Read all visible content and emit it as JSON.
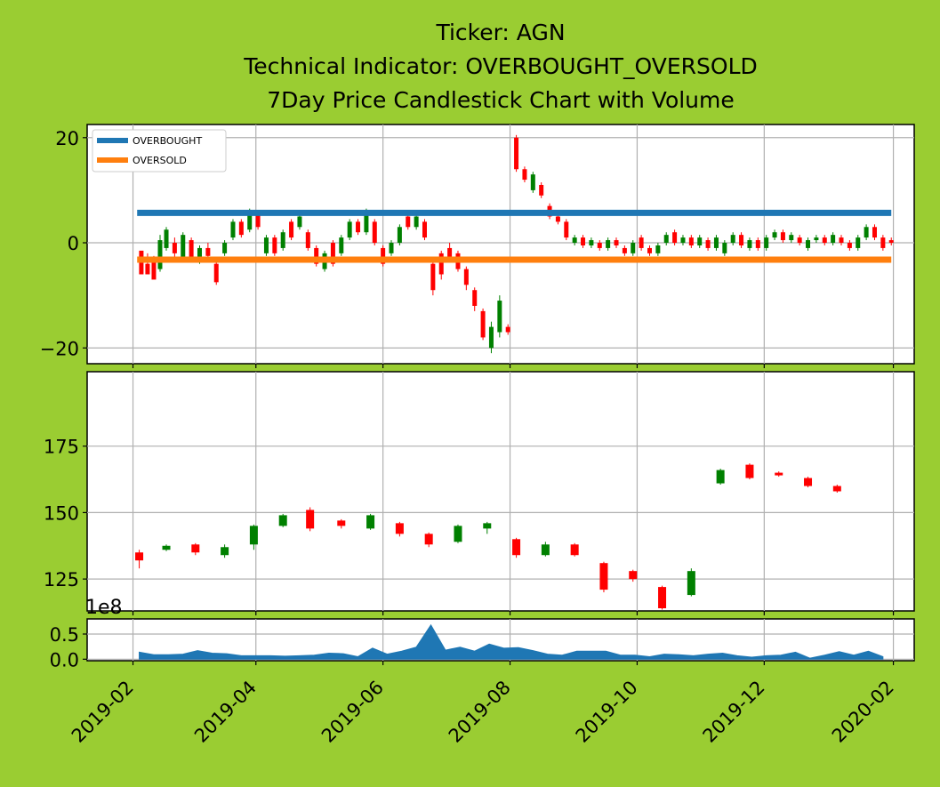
{
  "colors": {
    "background": "#9acd32",
    "panel": "#ffffff",
    "grid": "#b0b0b0",
    "up": "#008000",
    "down": "#ff0000",
    "overbought": "#1f77b4",
    "oversold": "#ff7f0e",
    "volume": "#1f77b4"
  },
  "title": {
    "line1": "Ticker: AGN",
    "line2": "Technical Indicator: OVERBOUGHT_OVERSOLD",
    "line3": "7Day Price Candlestick Chart with Volume"
  },
  "volume_multiplier_label": "1e8",
  "chart_data": [
    {
      "type": "line",
      "name": "indicator",
      "ylim": [
        -23,
        22.5
      ],
      "yticks": [
        20,
        0,
        -20
      ],
      "ytick_labels": [
        "20",
        "0",
        "−20"
      ],
      "legend": {
        "placement": "top-left",
        "entries": [
          "OVERBOUGHT",
          "OVERSOLD"
        ]
      },
      "series": [
        {
          "name": "OVERBOUGHT",
          "x": [
            "2019-02-03",
            "2020-01-31"
          ],
          "values": [
            5.7,
            5.7
          ]
        },
        {
          "name": "OVERSOLD",
          "x": [
            "2019-02-03",
            "2020-01-31"
          ],
          "values": [
            -3.2,
            -3.2
          ]
        }
      ],
      "candles": [
        [
          "2019-02-05",
          -1.5,
          -6,
          -2,
          -5
        ],
        [
          "2019-02-08",
          -4,
          -6,
          -2,
          -5
        ],
        [
          "2019-02-11",
          -3,
          -7,
          -2.5,
          -4.5
        ],
        [
          "2019-02-14",
          -5,
          0.5,
          -5.5,
          1.5
        ],
        [
          "2019-02-17",
          -1,
          2.5,
          -1.5,
          3
        ],
        [
          "2019-02-21",
          0,
          -2,
          1,
          -3
        ],
        [
          "2019-02-25",
          -3,
          1.5,
          -3.5,
          2
        ],
        [
          "2019-03-01",
          0.5,
          -3,
          1,
          -3.5
        ],
        [
          "2019-03-05",
          -3,
          -1,
          -4,
          -0.5
        ],
        [
          "2019-03-09",
          -1,
          -2.5,
          0,
          -3
        ],
        [
          "2019-03-13",
          -4,
          -7.5,
          -3,
          -8
        ],
        [
          "2019-03-17",
          -2,
          0,
          -2.5,
          0.5
        ],
        [
          "2019-03-21",
          1,
          4,
          0.5,
          4.5
        ],
        [
          "2019-03-25",
          4,
          1.5,
          4.5,
          1
        ],
        [
          "2019-03-29",
          2.5,
          6,
          2,
          6.5
        ],
        [
          "2019-04-02",
          5.5,
          3,
          6,
          2.5
        ],
        [
          "2019-04-06",
          -2,
          1,
          -2.5,
          1.5
        ],
        [
          "2019-04-10",
          1,
          -2,
          1.5,
          -2.5
        ],
        [
          "2019-04-14",
          -1,
          2,
          -1.5,
          2.5
        ],
        [
          "2019-04-18",
          4,
          1,
          4.5,
          0.5
        ],
        [
          "2019-04-22",
          3,
          5,
          2.5,
          5.5
        ],
        [
          "2019-04-26",
          2,
          -1,
          2.5,
          -1.5
        ],
        [
          "2019-04-30",
          -1,
          -4,
          -0.5,
          -4.5
        ],
        [
          "2019-05-04",
          -5,
          -2,
          -5.5,
          -1.5
        ],
        [
          "2019-05-08",
          0,
          -4,
          0.5,
          -4.5
        ],
        [
          "2019-05-12",
          -2,
          1,
          -2.5,
          1.5
        ],
        [
          "2019-05-16",
          1,
          4,
          0.5,
          4.5
        ],
        [
          "2019-05-20",
          4,
          2,
          4.5,
          1.5
        ],
        [
          "2019-05-24",
          2,
          6,
          1.5,
          6.5
        ],
        [
          "2019-05-28",
          4,
          0,
          4.5,
          -0.5
        ],
        [
          "2019-06-01",
          -1,
          -4,
          -0.5,
          -4.5
        ],
        [
          "2019-06-05",
          -2,
          0,
          -2.5,
          0.5
        ],
        [
          "2019-06-09",
          0,
          3,
          -0.5,
          3.5
        ],
        [
          "2019-06-13",
          5,
          3,
          5.5,
          2.5
        ],
        [
          "2019-06-17",
          3,
          5,
          2.5,
          5.5
        ],
        [
          "2019-06-21",
          4,
          1,
          4.5,
          0.5
        ],
        [
          "2019-06-25",
          -4,
          -9,
          -3.5,
          -10
        ],
        [
          "2019-06-29",
          -2,
          -6,
          -1.5,
          -7
        ],
        [
          "2019-07-03",
          -1,
          -3,
          0,
          -3.5
        ],
        [
          "2019-07-07",
          -2,
          -5,
          -1.5,
          -5.5
        ],
        [
          "2019-07-11",
          -5,
          -8,
          -4.5,
          -9
        ],
        [
          "2019-07-15",
          -9,
          -12,
          -8.5,
          -13
        ],
        [
          "2019-07-19",
          -13,
          -18,
          -12.5,
          -18.5
        ],
        [
          "2019-07-23",
          -20,
          -16,
          -21,
          -15
        ],
        [
          "2019-07-27",
          -17,
          -11,
          -18,
          -10
        ],
        [
          "2019-07-31",
          -16,
          -17,
          -15.5,
          -17.5
        ],
        [
          "2019-08-04",
          20,
          14,
          20.5,
          13.5
        ],
        [
          "2019-08-08",
          14,
          12,
          14.5,
          11.5
        ],
        [
          "2019-08-12",
          10,
          13,
          9.5,
          13.5
        ],
        [
          "2019-08-16",
          11,
          9,
          11.5,
          8.5
        ],
        [
          "2019-08-20",
          7,
          5,
          7.5,
          4.5
        ],
        [
          "2019-08-24",
          5,
          4,
          5.5,
          3.5
        ],
        [
          "2019-08-28",
          4,
          1,
          4.5,
          0.5
        ],
        [
          "2019-09-01",
          0,
          1,
          -0.5,
          1.5
        ],
        [
          "2019-09-05",
          1,
          -0.5,
          1.5,
          -1
        ],
        [
          "2019-09-09",
          -0.5,
          0.5,
          -1,
          1
        ],
        [
          "2019-09-13",
          0,
          -1,
          0.5,
          -1.5
        ],
        [
          "2019-09-17",
          -1,
          0.5,
          -1.5,
          1
        ],
        [
          "2019-09-21",
          0.5,
          -0.5,
          1,
          -1
        ],
        [
          "2019-09-25",
          -1,
          -2,
          -0.5,
          -2.5
        ],
        [
          "2019-09-29",
          -2,
          0,
          -2.5,
          0.5
        ],
        [
          "2019-10-03",
          1,
          -1,
          1.5,
          -1.5
        ],
        [
          "2019-10-07",
          -1,
          -2,
          -0.5,
          -2.5
        ],
        [
          "2019-10-11",
          -2,
          -0.5,
          -2.5,
          0
        ],
        [
          "2019-10-15",
          0,
          1.5,
          -0.5,
          2
        ],
        [
          "2019-10-19",
          2,
          0,
          2.5,
          -0.5
        ],
        [
          "2019-10-23",
          0,
          1,
          -0.5,
          1.5
        ],
        [
          "2019-10-27",
          1,
          -0.5,
          1.5,
          -1
        ],
        [
          "2019-10-31",
          -0.5,
          1,
          -1,
          1.5
        ],
        [
          "2019-11-04",
          0.5,
          -1,
          1,
          -1.5
        ],
        [
          "2019-11-08",
          -1,
          1,
          -1.5,
          1.5
        ],
        [
          "2019-11-12",
          -2,
          0,
          -2.5,
          0.5
        ],
        [
          "2019-11-16",
          0,
          1.5,
          -0.5,
          2
        ],
        [
          "2019-11-20",
          1.5,
          -0.5,
          2,
          -1
        ],
        [
          "2019-11-24",
          -1,
          0.5,
          -1.5,
          1
        ],
        [
          "2019-11-28",
          0.5,
          -1,
          1,
          -1.5
        ],
        [
          "2019-12-02",
          -1,
          1,
          -1.5,
          1.5
        ],
        [
          "2019-12-06",
          1,
          2,
          0.5,
          2.5
        ],
        [
          "2019-12-10",
          2,
          0.5,
          2.5,
          0
        ],
        [
          "2019-12-14",
          0.5,
          1.5,
          0,
          2
        ],
        [
          "2019-12-18",
          1,
          0,
          1.5,
          -0.5
        ],
        [
          "2019-12-22",
          -1,
          0.5,
          -1.5,
          1
        ],
        [
          "2019-12-26",
          0.5,
          1,
          0,
          1.5
        ],
        [
          "2019-12-30",
          1,
          0,
          1.5,
          -0.5
        ],
        [
          "2020-01-03",
          0,
          1.5,
          -0.5,
          2
        ],
        [
          "2020-01-07",
          1,
          0,
          1.5,
          -0.5
        ],
        [
          "2020-01-11",
          0,
          -1,
          0.5,
          -1.5
        ],
        [
          "2020-01-15",
          -1,
          1,
          -1.5,
          1.5
        ],
        [
          "2020-01-19",
          1,
          3,
          0.5,
          3.5
        ],
        [
          "2020-01-23",
          3,
          1,
          3.5,
          0.5
        ],
        [
          "2020-01-27",
          1,
          -1,
          1.5,
          -1.5
        ],
        [
          "2020-01-31",
          0.5,
          0,
          1,
          -0.5
        ]
      ],
      "candle_format": [
        "date",
        "open",
        "close",
        "high",
        "low"
      ]
    },
    {
      "type": "candlestick",
      "name": "price",
      "ylim": [
        113,
        203
      ],
      "yticks": [
        175,
        150,
        125
      ],
      "ytick_labels": [
        "175",
        "150",
        "125"
      ],
      "candles": [
        [
          "2019-02-04",
          135,
          132,
          136,
          129
        ],
        [
          "2019-02-17",
          136,
          137.5,
          135.5,
          138
        ],
        [
          "2019-03-03",
          138,
          135,
          138.5,
          134
        ],
        [
          "2019-03-17",
          134,
          137,
          133,
          138
        ],
        [
          "2019-03-31",
          138,
          145,
          136,
          145.5
        ],
        [
          "2019-04-14",
          145,
          149,
          144.5,
          149.5
        ],
        [
          "2019-04-27",
          151,
          144,
          152,
          143
        ],
        [
          "2019-05-12",
          147,
          145,
          147.5,
          144
        ],
        [
          "2019-05-26",
          144,
          149,
          143.5,
          149.5
        ],
        [
          "2019-06-09",
          146,
          142,
          146.5,
          141
        ],
        [
          "2019-06-23",
          142,
          138,
          142.5,
          137
        ],
        [
          "2019-07-07",
          139,
          145,
          138.5,
          145.5
        ],
        [
          "2019-07-21",
          144,
          146,
          142,
          146.5
        ],
        [
          "2019-08-04",
          140,
          134,
          140.5,
          133
        ],
        [
          "2019-08-18",
          134,
          138,
          133.5,
          139
        ],
        [
          "2019-09-01",
          138,
          134,
          138.5,
          133.5
        ],
        [
          "2019-09-15",
          131,
          121,
          131.5,
          120
        ],
        [
          "2019-09-29",
          128,
          125,
          128.5,
          124
        ],
        [
          "2019-10-13",
          122,
          114,
          122.5,
          113.5
        ],
        [
          "2019-10-27",
          119,
          128,
          118.5,
          129
        ],
        [
          "2019-11-10",
          161,
          166,
          160.5,
          166.5
        ],
        [
          "2019-11-24",
          168,
          163,
          168.5,
          162.5
        ],
        [
          "2019-12-08",
          165,
          164,
          165.5,
          163.5
        ],
        [
          "2019-12-22",
          163,
          160,
          163.5,
          159.5
        ],
        [
          "2020-01-05",
          160,
          158,
          160.5,
          157.5
        ]
      ],
      "candle_format": [
        "date",
        "open",
        "close",
        "high",
        "low"
      ]
    },
    {
      "type": "area",
      "name": "volume",
      "ylim": [
        -0.03,
        0.8
      ],
      "yticks": [
        0.5,
        0.0
      ],
      "ytick_labels": [
        "0.5",
        "0.0"
      ],
      "x": [
        "2019-02-04",
        "2019-02-11",
        "2019-02-18",
        "2019-02-25",
        "2019-03-04",
        "2019-03-11",
        "2019-03-18",
        "2019-03-25",
        "2019-04-01",
        "2019-04-08",
        "2019-04-15",
        "2019-04-22",
        "2019-04-29",
        "2019-05-06",
        "2019-05-13",
        "2019-05-20",
        "2019-05-27",
        "2019-06-03",
        "2019-06-10",
        "2019-06-17",
        "2019-06-24",
        "2019-07-01",
        "2019-07-08",
        "2019-07-15",
        "2019-07-22",
        "2019-07-29",
        "2019-08-05",
        "2019-08-12",
        "2019-08-19",
        "2019-08-26",
        "2019-09-02",
        "2019-09-09",
        "2019-09-16",
        "2019-09-23",
        "2019-09-30",
        "2019-10-07",
        "2019-10-14",
        "2019-10-21",
        "2019-10-28",
        "2019-11-04",
        "2019-11-11",
        "2019-11-18",
        "2019-11-25",
        "2019-12-02",
        "2019-12-09",
        "2019-12-16",
        "2019-12-23",
        "2019-12-30",
        "2020-01-06",
        "2020-01-13",
        "2020-01-20",
        "2020-01-27"
      ],
      "values": [
        0.14,
        0.09,
        0.09,
        0.1,
        0.17,
        0.12,
        0.11,
        0.07,
        0.07,
        0.07,
        0.06,
        0.07,
        0.08,
        0.12,
        0.11,
        0.05,
        0.22,
        0.1,
        0.16,
        0.24,
        0.68,
        0.18,
        0.24,
        0.16,
        0.3,
        0.22,
        0.23,
        0.17,
        0.1,
        0.08,
        0.16,
        0.16,
        0.16,
        0.08,
        0.08,
        0.05,
        0.1,
        0.09,
        0.07,
        0.1,
        0.12,
        0.07,
        0.04,
        0.07,
        0.08,
        0.14,
        0.02,
        0.08,
        0.15,
        0.08,
        0.16,
        0.05
      ]
    }
  ],
  "x_axis": {
    "range": [
      "2019-01-10",
      "2020-02-11"
    ],
    "ticks": [
      "2019-02-01",
      "2019-04-01",
      "2019-06-01",
      "2019-08-01",
      "2019-10-01",
      "2019-12-01",
      "2020-02-01"
    ],
    "tick_labels": [
      "2019-02",
      "2019-04",
      "2019-06",
      "2019-08",
      "2019-10",
      "2019-12",
      "2020-02"
    ]
  }
}
